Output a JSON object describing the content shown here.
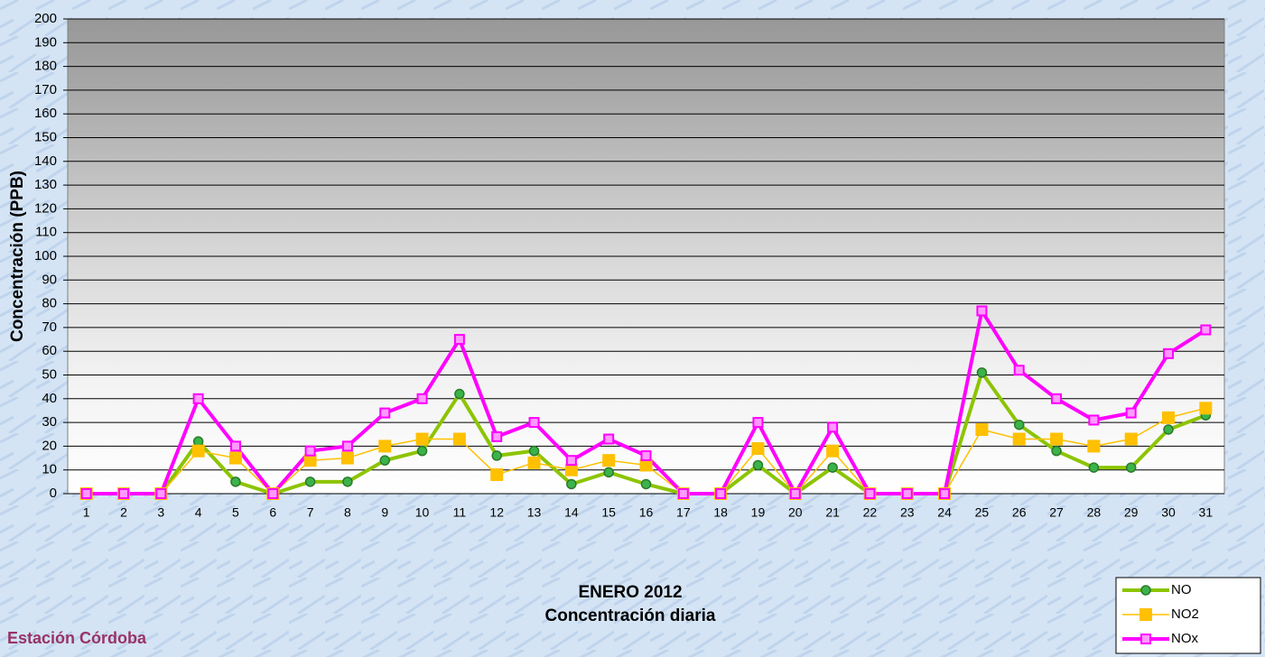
{
  "chart_data": {
    "type": "line",
    "title": "ENERO 2012",
    "subtitle": "Concentración diaria",
    "y_label": "Concentración  (PPB)",
    "annotation": "Estación Córdoba",
    "categories": [
      "1",
      "2",
      "3",
      "4",
      "5",
      "6",
      "7",
      "8",
      "9",
      "10",
      "11",
      "12",
      "13",
      "14",
      "15",
      "16",
      "17",
      "18",
      "19",
      "20",
      "21",
      "22",
      "23",
      "24",
      "25",
      "26",
      "27",
      "28",
      "29",
      "30",
      "31"
    ],
    "series": [
      {
        "name": "NO",
        "color": "#8cc400",
        "values": [
          0,
          0,
          0,
          22,
          5,
          0,
          5,
          5,
          14,
          18,
          42,
          16,
          18,
          4,
          9,
          4,
          0,
          0,
          12,
          0,
          11,
          0,
          0,
          0,
          51,
          29,
          18,
          11,
          11,
          27,
          33
        ]
      },
      {
        "name": "NO2",
        "color": "#ffc000",
        "values": [
          0,
          0,
          0,
          18,
          15,
          0,
          14,
          15,
          20,
          23,
          23,
          8,
          13,
          10,
          14,
          12,
          0,
          0,
          19,
          0,
          18,
          0,
          0,
          0,
          27,
          23,
          23,
          20,
          23,
          32,
          36
        ]
      },
      {
        "name": "NOx",
        "color": "#ff00ff",
        "values": [
          0,
          0,
          0,
          40,
          20,
          0,
          18,
          20,
          34,
          40,
          65,
          24,
          30,
          14,
          23,
          16,
          0,
          0,
          30,
          0,
          28,
          0,
          0,
          0,
          77,
          52,
          40,
          31,
          34,
          59,
          69
        ]
      }
    ],
    "ylim": [
      0,
      200
    ],
    "yticks": [
      0,
      10,
      20,
      30,
      40,
      50,
      60,
      70,
      80,
      90,
      100,
      110,
      120,
      130,
      140,
      150,
      160,
      170,
      180,
      190,
      200
    ],
    "grid": true,
    "legend": "bottom-right"
  }
}
